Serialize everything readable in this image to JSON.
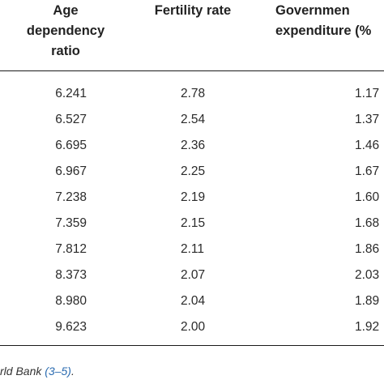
{
  "table": {
    "headers": {
      "age": [
        "Age",
        "dependency",
        "ratio"
      ],
      "fertility": [
        "Fertility rate"
      ],
      "government": [
        "Governmen",
        "expenditure (%"
      ]
    },
    "rows": [
      {
        "age": "6.241",
        "fertility": "2.78",
        "government": "1.17"
      },
      {
        "age": "6.527",
        "fertility": "2.54",
        "government": "1.37"
      },
      {
        "age": "6.695",
        "fertility": "2.36",
        "government": "1.46"
      },
      {
        "age": "6.967",
        "fertility": "2.25",
        "government": "1.67"
      },
      {
        "age": "7.238",
        "fertility": "2.19",
        "government": "1.60"
      },
      {
        "age": "7.359",
        "fertility": "2.15",
        "government": "1.68"
      },
      {
        "age": "7.812",
        "fertility": "2.11",
        "government": "1.86"
      },
      {
        "age": "8.373",
        "fertility": "2.07",
        "government": "2.03"
      },
      {
        "age": "8.980",
        "fertility": "2.04",
        "government": "1.89"
      },
      {
        "age": "9.623",
        "fertility": "2.00",
        "government": "1.92"
      }
    ]
  },
  "footnote": {
    "prefix": "rld Bank ",
    "ref": "(3–5)",
    "suffix": "."
  }
}
